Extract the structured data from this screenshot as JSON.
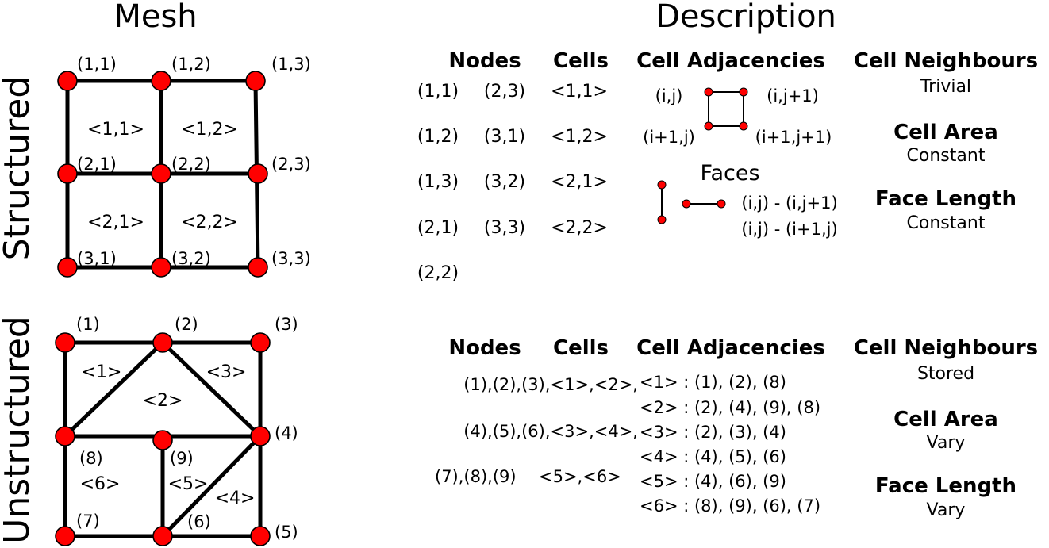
{
  "headers": {
    "mesh": "Mesh",
    "description": "Description"
  },
  "structured": {
    "side_label": "Structured",
    "node_labels": [
      "(1,1)",
      "(1,2)",
      "(1,3)",
      "(2,1)",
      "(2,2)",
      "(2,3)",
      "(3,1)",
      "(3,2)",
      "(3,3)"
    ],
    "cell_labels": [
      "<1,1>",
      "<1,2>",
      "<2,1>",
      "<2,2>"
    ],
    "desc": {
      "col_nodes": "Nodes",
      "col_cells": "Cells",
      "col_adj": "Cell Adjacencies",
      "col_neigh": "Cell Neighbours",
      "nodes_col1": [
        "(1,1)",
        "(1,2)",
        "(1,3)",
        "(2,1)",
        "(2,2)"
      ],
      "nodes_col2": [
        "(2,3)",
        "(3,1)",
        "(3,2)",
        "(3,3)"
      ],
      "cells": [
        "<1,1>",
        "<1,2>",
        "<2,1>",
        "<2,2>"
      ],
      "adj_corners": [
        "(i,j)",
        "(i,j+1)",
        "(i+1,j)",
        "(i+1,j+1)"
      ],
      "faces_title": "Faces",
      "faces_lines": [
        "(i,j) - (i,j+1)",
        "(i,j) - (i+1,j)"
      ],
      "neigh_value": "Trivial",
      "area_title": "Cell Area",
      "area_value": "Constant",
      "face_length_title": "Face Length",
      "face_length_value": "Constant"
    }
  },
  "unstructured": {
    "side_label": "Unstructured",
    "node_labels": [
      "(1)",
      "(2)",
      "(3)",
      "(4)",
      "(5)",
      "(6)",
      "(7)",
      "(8)",
      "(9)"
    ],
    "cell_labels": [
      "<1>",
      "<2>",
      "<3>",
      "<4>",
      "<5>",
      "<6>"
    ],
    "desc": {
      "col_nodes": "Nodes",
      "col_cells": "Cells",
      "col_adj": "Cell Adjacencies",
      "col_neigh": "Cell Neighbours",
      "node_cell_lines": [
        "(1),(2),(3),<1>,<2>,",
        "(4),(5),(6),<3>,<4>,",
        "(7),(8),(9)"
      ],
      "cells_tail": "<5>,<6>",
      "adjacency_lines": [
        "<1> : (1), (2), (8)",
        "<2> : (2), (4), (9), (8)",
        "<3> : (2), (3), (4)",
        "<4> : (4), (5), (6)",
        "<5> : (4), (6), (9)",
        "<6> : (8), (9), (6), (7)"
      ],
      "neigh_value": "Stored",
      "area_title": "Cell Area",
      "area_value": "Vary",
      "face_length_title": "Face Length",
      "face_length_value": "Vary"
    }
  }
}
